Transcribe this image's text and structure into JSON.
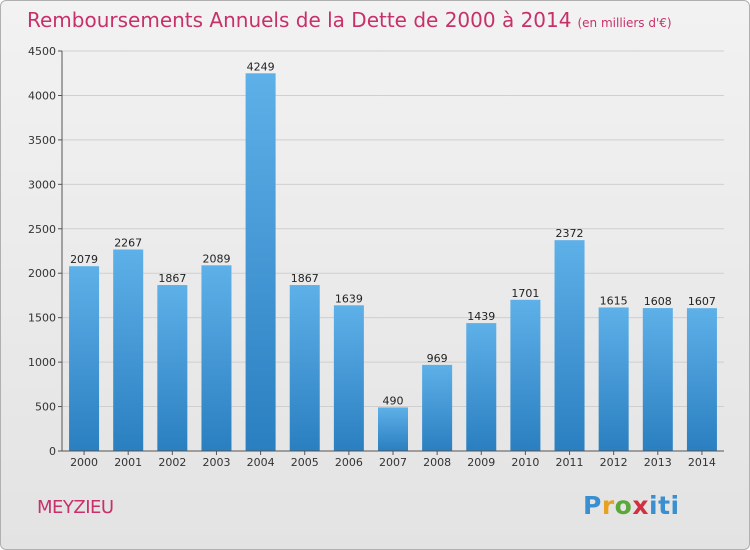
{
  "title": "Remboursements Annuels de la Dette de 2000 à 2014",
  "subtitle": "(en milliers d'€)",
  "location": "MEYZIEU",
  "logo": {
    "text": "Proxiti"
  },
  "colors": {
    "title": "#c8306a",
    "bar_top": "#5eb0e8",
    "bar_bottom": "#2a7fc0"
  },
  "chart_data": {
    "type": "bar",
    "title": "Remboursements Annuels de la Dette de 2000 à 2014",
    "subtitle": "(en milliers d'€)",
    "categories": [
      "2000",
      "2001",
      "2002",
      "2003",
      "2004",
      "2005",
      "2006",
      "2007",
      "2008",
      "2009",
      "2010",
      "2011",
      "2012",
      "2013",
      "2014"
    ],
    "values": [
      2079,
      2267,
      1867,
      2089,
      4249,
      1867,
      1639,
      490,
      969,
      1439,
      1701,
      2372,
      1615,
      1608,
      1607
    ],
    "ylim": [
      0,
      4500
    ],
    "yticks": [
      0,
      500,
      1000,
      1500,
      2000,
      2500,
      3000,
      3500,
      4000,
      4500
    ],
    "grid": true,
    "xlabel": "",
    "ylabel": ""
  }
}
